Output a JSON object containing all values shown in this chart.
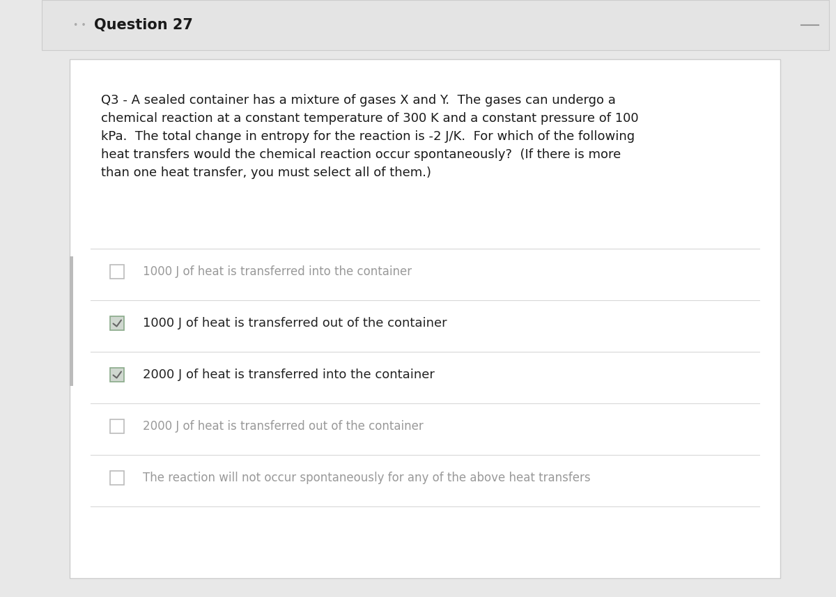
{
  "title": "Question 27",
  "question_text_lines": [
    "Q3 - A sealed container has a mixture of gases X and Y.  The gases can undergo a",
    "chemical reaction at a constant temperature of 300 K and a constant pressure of 100",
    "kPa.  The total change in entropy for the reaction is -2 J/K.  For which of the following",
    "heat transfers would the chemical reaction occur spontaneously?  (If there is more",
    "than one heat transfer, you must select all of them.)"
  ],
  "options": [
    {
      "text": "1000 J of heat is transferred into the container",
      "checked": false
    },
    {
      "text": "1000 J of heat is transferred out of the container",
      "checked": true
    },
    {
      "text": "2000 J of heat is transferred into the container",
      "checked": true
    },
    {
      "text": "2000 J of heat is transferred out of the container",
      "checked": false
    },
    {
      "text": "The reaction will not occur spontaneously for any of the above heat transfers",
      "checked": false
    }
  ],
  "bg_color": "#e8e8e8",
  "header_bg": "#e4e4e4",
  "card_bg": "#ffffff",
  "title_color": "#1a1a1a",
  "question_color": "#1a1a1a",
  "option_checked_color": "#222222",
  "option_unchecked_color": "#999999",
  "checkbox_checked_fill": "#d0d8d0",
  "checkbox_checked_border": "#8aaa8a",
  "checkbox_unchecked_fill": "#ffffff",
  "checkbox_unchecked_border": "#bbbbbb",
  "checkmark_color": "#666666",
  "separator_color": "#d8d8d8",
  "title_fontsize": 15,
  "question_fontsize": 13,
  "option_checked_fontsize": 13,
  "option_unchecked_fontsize": 12
}
